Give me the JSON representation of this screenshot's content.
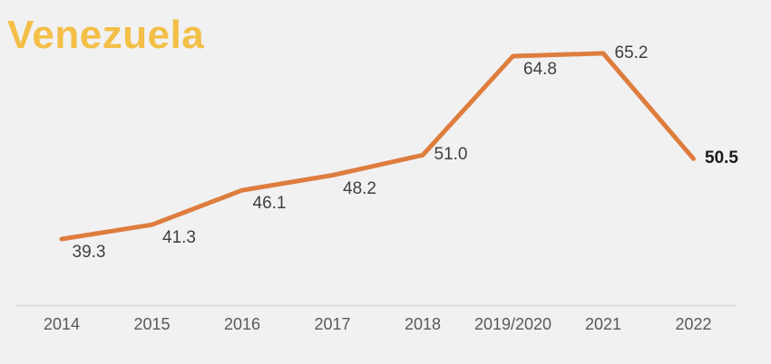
{
  "page": {
    "background_color": "#f1f1f2"
  },
  "title": {
    "text": "Venezuela",
    "color": "#f3bf47"
  },
  "chart_data": {
    "type": "line",
    "title": "Venezuela",
    "categories": [
      "2014",
      "2015",
      "2016",
      "2017",
      "2018",
      "2019/2020",
      "2021",
      "2022"
    ],
    "values": [
      39.3,
      41.3,
      46.1,
      48.2,
      51.0,
      64.8,
      65.2,
      50.5
    ],
    "data_labels": [
      "39.3",
      "41.3",
      "46.1",
      "48.2",
      "51.0",
      "64.8",
      "65.2",
      "50.5"
    ],
    "xlabel": "",
    "ylabel": "",
    "ylim": [
      30,
      70
    ],
    "grid": false,
    "legend": false,
    "series_color": "#de7d3e",
    "data_label_color": "#3f3f3f",
    "last_label_bold": true,
    "last_label_color": "#1a1a1a",
    "axis_tick_color": "#595959",
    "axis_line_color": "#d8d8d8",
    "label_anchors": [
      "below",
      "below",
      "below",
      "below",
      "right",
      "below",
      "right",
      "right"
    ]
  }
}
